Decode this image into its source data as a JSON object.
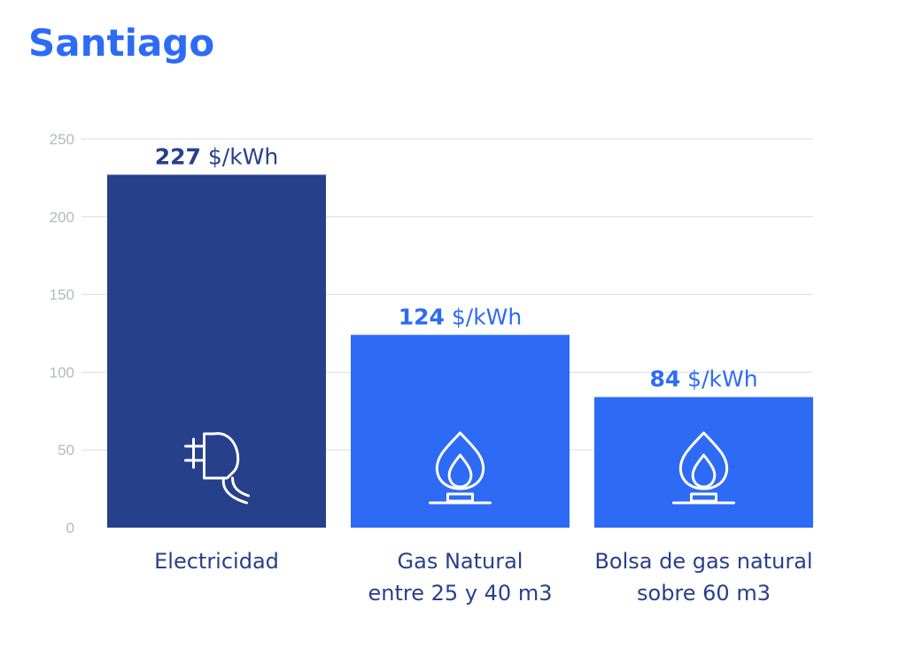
{
  "title": "Santiago",
  "colors": {
    "title": "#2e6bf5",
    "electricity": "#27408b",
    "gas": "#2e6bf5",
    "grid": "#dcdcdc",
    "axis_text": "#b4b8c0",
    "category_text": "#28408c",
    "icon": "#ffffff"
  },
  "chart_data": {
    "type": "bar",
    "categories": [
      [
        "Electricidad"
      ],
      [
        "Gas Natural",
        "entre 25 y 40 m3"
      ],
      [
        "Bolsa de gas natural",
        "sobre 60 m3"
      ]
    ],
    "values": [
      227,
      124,
      84
    ],
    "value_labels": [
      {
        "number": "227",
        "unit": " $/kWh"
      },
      {
        "number": "124",
        "unit": " $/kWh"
      },
      {
        "number": "84",
        "unit": " $/kWh"
      }
    ],
    "icons": [
      "plug-icon",
      "flame-icon",
      "flame-icon"
    ],
    "bar_colors": [
      "#27408b",
      "#2e6bf5",
      "#2e6bf5"
    ],
    "label_colors": [
      "#27408b",
      "#2e6bf5",
      "#2e6bf5"
    ],
    "yticks": [
      0,
      50,
      100,
      150,
      200,
      250
    ],
    "ylim": [
      0,
      250
    ],
    "grid": true,
    "legend": "none",
    "xlabel": "",
    "ylabel": ""
  }
}
